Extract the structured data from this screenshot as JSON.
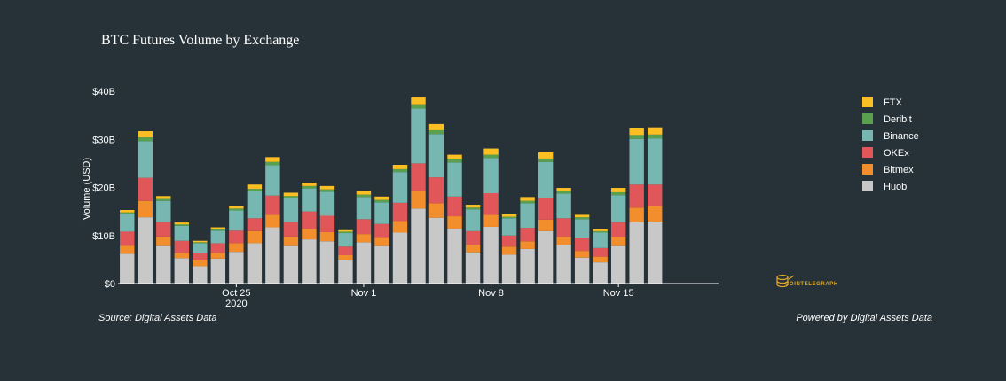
{
  "chart_data": {
    "type": "bar",
    "stacked": true,
    "title": "BTC Futures Volume by Exchange",
    "ylabel": "Volume (USD)",
    "xlabel": "",
    "ylim": [
      0,
      40
    ],
    "yticks": [
      0,
      10,
      20,
      30,
      40
    ],
    "ytick_labels": [
      "$0",
      "$10B",
      "$20B",
      "$30B",
      "$40B"
    ],
    "xticks": [
      {
        "index": 6,
        "label": "Oct 25",
        "sublabel": "2020"
      },
      {
        "index": 13,
        "label": "Nov 1",
        "sublabel": ""
      },
      {
        "index": 20,
        "label": "Nov 8",
        "sublabel": ""
      },
      {
        "index": 27,
        "label": "Nov 15",
        "sublabel": ""
      }
    ],
    "categories": [
      "Oct 19",
      "Oct 20",
      "Oct 21",
      "Oct 22",
      "Oct 23",
      "Oct 24",
      "Oct 25",
      "Oct 26",
      "Oct 27",
      "Oct 28",
      "Oct 29",
      "Oct 30",
      "Oct 31",
      "Nov 1",
      "Nov 2",
      "Nov 3",
      "Nov 4",
      "Nov 5",
      "Nov 6",
      "Nov 7",
      "Nov 8",
      "Nov 9",
      "Nov 10",
      "Nov 11",
      "Nov 12",
      "Nov 13",
      "Nov 14",
      "Nov 15",
      "Nov 16",
      "Nov 17",
      "Nov 18",
      "Nov 19",
      "Nov 20"
    ],
    "series": [
      {
        "name": "Huobi",
        "color": "#c8c8c8",
        "values": [
          6.2,
          13.8,
          7.8,
          5.3,
          3.6,
          5.2,
          6.6,
          8.4,
          11.7,
          7.8,
          9.2,
          8.8,
          4.9,
          8.6,
          7.8,
          10.6,
          15.6,
          13.7,
          11.4,
          6.5,
          11.8,
          6.0,
          7.2,
          10.9,
          8.1,
          5.4,
          4.4,
          7.8,
          12.8,
          12.9,
          0,
          0,
          0
        ]
      },
      {
        "name": "Bitmex",
        "color": "#f28e2b",
        "values": [
          1.7,
          3.4,
          2.0,
          1.1,
          1.2,
          1.2,
          1.8,
          2.5,
          2.6,
          2.0,
          2.2,
          1.9,
          1.0,
          1.7,
          1.7,
          2.4,
          3.6,
          3.0,
          2.6,
          1.6,
          2.5,
          1.7,
          1.6,
          2.4,
          1.6,
          1.4,
          1.2,
          1.8,
          3.0,
          3.2,
          0,
          0,
          0
        ]
      },
      {
        "name": "OKEx",
        "color": "#e15759",
        "values": [
          2.9,
          4.8,
          3.0,
          2.5,
          1.5,
          2.0,
          2.6,
          2.7,
          4.0,
          3.0,
          3.6,
          3.4,
          1.8,
          3.1,
          2.9,
          3.8,
          5.8,
          5.4,
          4.1,
          2.8,
          4.5,
          2.3,
          2.8,
          4.5,
          3.9,
          2.6,
          1.8,
          3.1,
          4.8,
          4.5,
          0,
          0,
          0
        ]
      },
      {
        "name": "Binance",
        "color": "#76b7b2",
        "values": [
          3.7,
          7.6,
          4.4,
          3.1,
          2.1,
          2.6,
          4.2,
          5.6,
          6.3,
          4.9,
          4.8,
          5.0,
          2.8,
          4.6,
          4.5,
          6.4,
          11.4,
          9.0,
          7.1,
          4.5,
          7.3,
          3.6,
          5.1,
          7.5,
          5.1,
          4.0,
          3.2,
          5.7,
          9.5,
          9.6,
          0,
          0,
          0
        ]
      },
      {
        "name": "Deribit",
        "color": "#59a14f",
        "values": [
          0.3,
          0.8,
          0.4,
          0.3,
          0.2,
          0.3,
          0.4,
          0.5,
          0.7,
          0.5,
          0.5,
          0.5,
          0.3,
          0.5,
          0.5,
          0.6,
          0.9,
          0.8,
          0.6,
          0.4,
          0.7,
          0.3,
          0.5,
          0.7,
          0.5,
          0.4,
          0.3,
          0.6,
          0.8,
          0.8,
          0,
          0,
          0
        ]
      },
      {
        "name": "FTX",
        "color": "#fbbf24",
        "values": [
          0.5,
          1.3,
          0.6,
          0.4,
          0.3,
          0.4,
          0.6,
          0.9,
          1.0,
          0.7,
          0.7,
          0.7,
          0.3,
          0.7,
          0.7,
          0.9,
          1.4,
          1.3,
          1.0,
          0.6,
          1.3,
          0.5,
          0.8,
          1.3,
          0.7,
          0.5,
          0.4,
          0.9,
          1.4,
          1.5,
          0,
          0,
          0
        ]
      }
    ],
    "legend_order": [
      "FTX",
      "Deribit",
      "Binance",
      "OKEx",
      "Bitmex",
      "Huobi"
    ],
    "legend_position": "right",
    "grid": false
  },
  "footer": {
    "source": "Source: Digital Assets Data",
    "powered": "Powered by Digital Assets Data"
  },
  "brand": {
    "text": "COINTELEGRAPH",
    "icon": "cointelegraph-logo-icon"
  }
}
